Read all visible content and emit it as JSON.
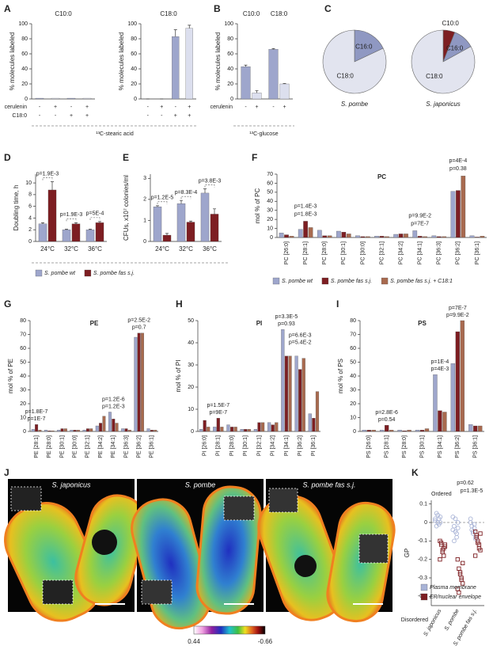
{
  "chart_data": [
    {
      "type": "bar",
      "panel": "A",
      "title": "C10:0",
      "ylabel": "% molecules labeled",
      "values": [
        1,
        1,
        1,
        1
      ],
      "colors": [
        "#9ea6cc",
        "#dcdfee",
        "#9ea6cc",
        "#dcdfee"
      ],
      "ylim": [
        0,
        100
      ],
      "yticks": [
        0,
        20,
        40,
        60,
        80,
        100
      ],
      "conditions": [
        {
          "name": "cerulenin",
          "signs": [
            "-",
            "+",
            "-",
            "+"
          ]
        },
        {
          "name": "C18:0",
          "signs": [
            "-",
            "-",
            "+",
            "+"
          ]
        }
      ],
      "footer": "¹³C-stearic acid"
    },
    {
      "type": "bar",
      "title": "C18:0",
      "ylabel": "% molecules labeled",
      "values": [
        0,
        0,
        83,
        94
      ],
      "errors": [
        0,
        0,
        9,
        4
      ],
      "colors": [
        "#9ea6cc",
        "#dcdfee",
        "#9ea6cc",
        "#dcdfee"
      ],
      "ylim": [
        0,
        100
      ],
      "yticks": [
        0,
        20,
        40,
        60,
        80,
        100
      ],
      "condition_signs": [
        [
          "-",
          "+",
          "-",
          "+"
        ],
        [
          "-",
          "-",
          "+",
          "+"
        ]
      ]
    },
    {
      "type": "bar",
      "panel": "B",
      "ylabel": "% molecules labeled",
      "categories": [
        "C10:0",
        "C18:0"
      ],
      "series": [
        {
          "color": "#9ea6cc",
          "values": [
            43,
            66
          ],
          "errors": [
            2,
            1
          ]
        },
        {
          "color": "#dcdfee",
          "values": [
            8,
            20
          ],
          "errors": [
            3,
            0.5
          ]
        }
      ],
      "ylim": [
        0,
        100
      ],
      "yticks": [
        0,
        20,
        40,
        60,
        80,
        100
      ],
      "conditions": [
        {
          "name": "cerulenin",
          "signs": [
            "-",
            "+",
            "-",
            "+"
          ]
        }
      ],
      "footer": "¹³C-glucose"
    },
    {
      "type": "pie",
      "panel": "C",
      "title": "S. pombe",
      "categories": [
        "C16:0",
        "C18:0"
      ],
      "values": [
        18,
        82
      ],
      "colors": [
        "#8f98c2",
        "#e2e4ef"
      ]
    },
    {
      "type": "pie",
      "title": "S. japonicus",
      "categories": [
        "C10:0",
        "C16:0",
        "C18:0"
      ],
      "values": [
        6,
        11,
        83
      ],
      "colors": [
        "#7d1e22",
        "#8f98c2",
        "#e2e4ef"
      ]
    },
    {
      "type": "bar",
      "panel": "D",
      "ylabel": "Doubling time, h",
      "categories": [
        "24°C",
        "32°C",
        "36°C"
      ],
      "series": [
        {
          "name": "S. pombe wt",
          "color": "#9ea6cc",
          "values": [
            3.0,
            2.0,
            2.0
          ],
          "errors": [
            0.2,
            0.1,
            0.1
          ]
        },
        {
          "name": "S. pombe fas s.j.",
          "color": "#7d1e22",
          "values": [
            8.8,
            3.0,
            3.2
          ],
          "errors": [
            1.4,
            0.2,
            0.2
          ]
        }
      ],
      "ylim": [
        0,
        11.5
      ],
      "yticks": [
        0,
        2,
        4,
        6,
        8,
        10
      ],
      "annotations": [
        "p=1.9E-3",
        "p=1.9E-3",
        "p=5E-4"
      ]
    },
    {
      "type": "bar",
      "panel": "E",
      "ylabel": "CFUs, x10⁷ colonies/ml",
      "categories": [
        "24°C",
        "32°C",
        "36°C"
      ],
      "series": [
        {
          "color": "#9ea6cc",
          "values": [
            1.65,
            1.8,
            2.3
          ],
          "errors": [
            0.05,
            0.15,
            0.2
          ]
        },
        {
          "color": "#7d1e22",
          "values": [
            0.3,
            0.92,
            1.3
          ],
          "errors": [
            0.08,
            0.05,
            0.25
          ]
        }
      ],
      "ylim": [
        0,
        3.2
      ],
      "yticks": [
        0,
        1,
        2,
        3
      ],
      "annotations": [
        "p=1.2E-5",
        "p=8.3E-4",
        "p=3.8E-3"
      ]
    },
    {
      "type": "bar",
      "panel": "F",
      "title": "PC",
      "ylabel": "mol % of PC",
      "categories": [
        "PC [26:0]",
        "PC [28:1]",
        "PC [28:0]",
        "PC [30:1]",
        "PC [30:0]",
        "PC [32:1]",
        "PC [34:2]",
        "PC [34:1]",
        "PC [36:3]",
        "PC [36:2]",
        "PC [36:1]"
      ],
      "series": [
        {
          "name": "S. pombe wt",
          "color": "#9ea6cc",
          "values": [
            5,
            9,
            8,
            7,
            2,
            1.5,
            3.5,
            7.5,
            2,
            51,
            2
          ]
        },
        {
          "name": "S. pombe fas s.j.",
          "color": "#7d1e22",
          "values": [
            3,
            18,
            2,
            6,
            1,
            1.5,
            4,
            1.5,
            1,
            52,
            0.5
          ]
        },
        {
          "name": "S. pombe fas s.j. + C18:1",
          "color": "#a86a4f",
          "values": [
            1.5,
            11,
            2,
            4,
            1,
            1,
            4,
            1,
            1,
            68,
            1.5
          ]
        }
      ],
      "ylim": [
        0,
        70
      ],
      "yticks": [
        0,
        10,
        20,
        30,
        40,
        50,
        60,
        70
      ],
      "annotations": [
        "p=1.8E-3",
        "p=1.4E-3",
        "p=7E-7",
        "p=9.9E-2",
        "p=0.38",
        "p=4E-4"
      ]
    },
    {
      "type": "bar",
      "panel": "G",
      "title": "PE",
      "ylabel": "mol % of PE",
      "categories": [
        "PE [28:1]",
        "PE [28:0]",
        "PE [30:1]",
        "PE [30:0]",
        "PE [32:1]",
        "PE [34:2]",
        "PE [34:1]",
        "PE [36:3]",
        "PE [36:2]",
        "PE [36:1]"
      ],
      "series": [
        {
          "color": "#9ea6cc",
          "values": [
            1.5,
            1,
            1,
            1,
            1,
            4,
            14,
            2,
            68,
            2
          ]
        },
        {
          "color": "#7d1e22",
          "values": [
            5,
            0.5,
            2,
            1,
            2,
            6,
            9,
            2,
            71,
            1
          ]
        },
        {
          "color": "#a86a4f",
          "values": [
            1,
            0.5,
            2,
            1,
            2,
            11,
            6,
            1,
            71,
            1
          ]
        }
      ],
      "ylim": [
        0,
        80
      ],
      "yticks": [
        0,
        10,
        20,
        30,
        40,
        50,
        60,
        70,
        80
      ],
      "annotations": [
        "p=1.8E-7",
        "p=1E-7",
        "p=1.2E-6",
        "p=1.2E-3",
        "p=2.5E-2",
        "p=0.7"
      ]
    },
    {
      "type": "bar",
      "panel": "H",
      "title": "PI",
      "ylabel": "mol % of PI",
      "categories": [
        "PI [26:0]",
        "PI [28:1]",
        "PI [28:0]",
        "PI [30:1]",
        "PI [32:1]",
        "PI [34:2]",
        "PI [34:1]",
        "PI [36:2]",
        "PI [36:1]"
      ],
      "series": [
        {
          "color": "#9ea6cc",
          "values": [
            1,
            2,
            3,
            1,
            1,
            4,
            46,
            34,
            8
          ]
        },
        {
          "color": "#7d1e22",
          "values": [
            5,
            6,
            2,
            1,
            4,
            3,
            34,
            28,
            6
          ]
        },
        {
          "color": "#a86a4f",
          "values": [
            2,
            2,
            2,
            1,
            4,
            4,
            34,
            33,
            18
          ]
        }
      ],
      "ylim": [
        0,
        50
      ],
      "yticks": [
        0,
        10,
        20,
        30,
        40,
        50
      ],
      "annotations": [
        "p=1.5E-7",
        "p=9E-7",
        "p=3.3E-5",
        "p=0.93",
        "p=6.6E-3",
        "p=5.4E-2"
      ]
    },
    {
      "type": "bar",
      "panel": "I",
      "title": "PS",
      "ylabel": "mol % of PS",
      "categories": [
        "PS [26:0]",
        "PS [28:1]",
        "PS [28:0]",
        "PS [30:1]",
        "PS [34:1]",
        "PS [36:2]",
        "PS [36:1]"
      ],
      "series": [
        {
          "color": "#9ea6cc",
          "values": [
            1,
            1,
            1,
            1,
            41,
            49,
            5
          ]
        },
        {
          "color": "#7d1e22",
          "values": [
            1,
            4.5,
            0.5,
            1,
            15,
            72,
            4
          ]
        },
        {
          "color": "#a86a4f",
          "values": [
            1,
            1,
            1,
            2,
            14,
            80,
            4
          ]
        }
      ],
      "ylim": [
        0,
        80
      ],
      "yticks": [
        0,
        10,
        20,
        30,
        40,
        50,
        60,
        70,
        80
      ],
      "annotations": [
        "p=2.8E-6",
        "p=0.54",
        "p=1E-4",
        "p=4E-3",
        "p=7E-7",
        "p=9.9E-2"
      ]
    },
    {
      "type": "strip",
      "panel": "K",
      "ylabel": "GP",
      "categories": [
        "S. japonicus",
        "S. pombe",
        "S. pombe fas s.j."
      ],
      "series": [
        {
          "name": "Plasma membrane",
          "color": "#a8b3d6",
          "values": [
            [
              0.02,
              0.05,
              0.0,
              -0.01,
              0.03,
              0.01,
              -0.02,
              0.04,
              0.02,
              0.0
            ],
            [
              0.03,
              -0.02,
              -0.05,
              -0.08,
              0.0,
              -0.04,
              -0.1,
              0.02,
              -0.06,
              -0.03
            ],
            [
              0.0,
              -0.02,
              -0.05,
              -0.03,
              -0.08,
              0.02,
              -0.04,
              -0.06,
              -0.01,
              -0.09
            ]
          ]
        },
        {
          "name": "ER/nuclear envelope",
          "color": "#7d1e22",
          "values": [
            [
              -0.1,
              -0.12,
              -0.15,
              -0.18,
              -0.13,
              -0.2,
              -0.11,
              -0.16,
              -0.14,
              -0.12
            ],
            [
              -0.2,
              -0.25,
              -0.28,
              -0.3,
              -0.33,
              -0.36,
              -0.38,
              -0.27,
              -0.31,
              -0.22
            ],
            [
              -0.05,
              -0.08,
              -0.1,
              -0.12,
              -0.15,
              -0.18,
              -0.07,
              -0.11,
              -0.14,
              -0.06
            ]
          ]
        }
      ],
      "ylim": [
        -0.45,
        0.12
      ],
      "yticks": [
        0.1,
        0,
        -0.1,
        -0.2,
        -0.3,
        -0.4
      ],
      "annotations": [
        "Ordered",
        "Disordered",
        "p=0.62",
        "p=1.3E-5"
      ]
    }
  ],
  "microscopy": {
    "panel": "J",
    "titles": [
      "S. japonicus",
      "S. pombe",
      "S. pombe fas s.j."
    ],
    "colorbar": [
      0.44,
      -0.66
    ]
  }
}
